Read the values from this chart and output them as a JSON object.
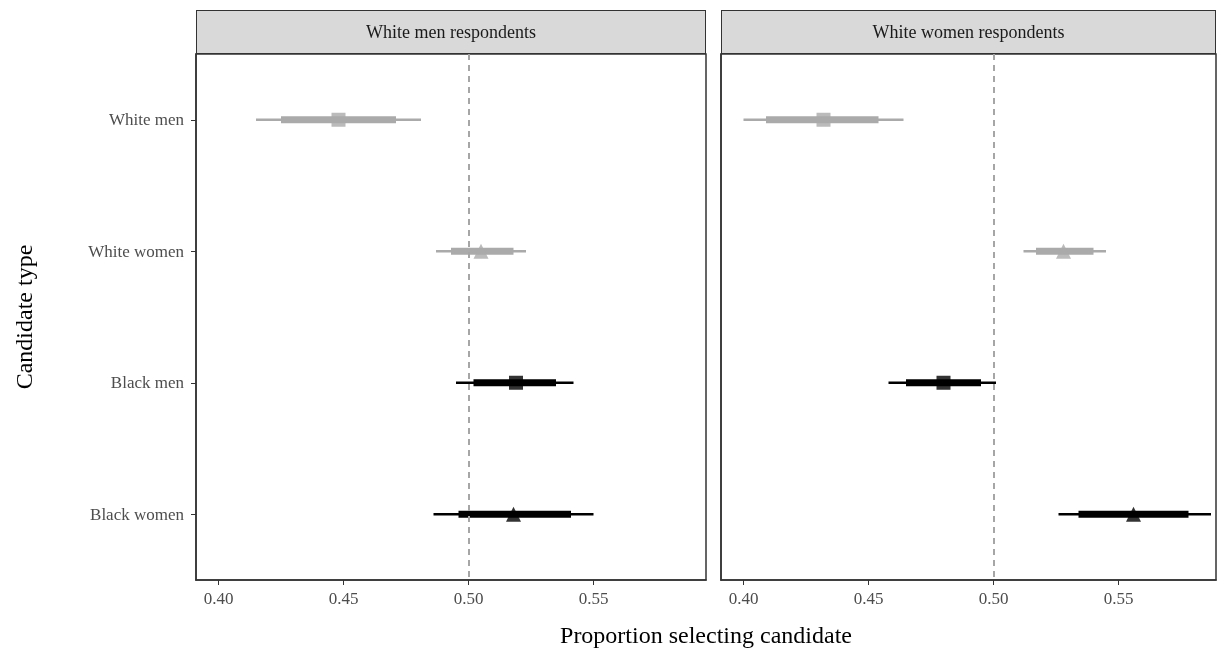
{
  "chart_data": [
    {
      "type": "scatter",
      "orientation": "horizontal",
      "title": "White men respondents",
      "xlabel": "Proportion selecting candidate",
      "ylabel": "Candidate type",
      "categories": [
        "White men",
        "White women",
        "Black men",
        "Black women"
      ],
      "xlim": [
        0.391,
        0.595
      ],
      "xticks": [
        {
          "value": 0.4,
          "label": "0.40"
        },
        {
          "value": 0.45,
          "label": "0.45"
        },
        {
          "value": 0.5,
          "label": "0.50"
        },
        {
          "value": 0.55,
          "label": "0.55"
        }
      ],
      "ref_lines": [
        {
          "axis": "x",
          "value": 0.5,
          "color": "#a6a6a6",
          "line_style": "dashed"
        }
      ],
      "series": [
        {
          "type": "bar",
          "base": [
            0.425,
            0.493,
            0.502,
            0.496
          ],
          "values": [
            0.046,
            0.025,
            0.033,
            0.045
          ],
          "colors": [
            "#aaaaaa",
            "#aaaaaa",
            "#000000",
            "#000000"
          ]
        },
        {
          "marker": "square",
          "values": [
            0.448,
            null,
            0.519,
            null
          ],
          "errors": [
            [
              0.415,
              0.481
            ],
            null,
            [
              0.495,
              0.542
            ],
            null
          ],
          "colors": [
            "#aaaaaa",
            null,
            "#000000",
            null
          ]
        },
        {
          "marker": "triangle",
          "values": [
            null,
            0.505,
            null,
            0.518
          ],
          "errors": [
            null,
            [
              0.487,
              0.523
            ],
            null,
            [
              0.486,
              0.55
            ]
          ],
          "colors": [
            null,
            "#aaaaaa",
            null,
            "#000000"
          ]
        }
      ]
    },
    {
      "type": "scatter",
      "orientation": "horizontal",
      "title": "White women respondents",
      "tick_labels": "x",
      "categories": [
        null,
        null,
        null,
        null
      ],
      "xlim": [
        0.391,
        0.589
      ],
      "xticks": [
        {
          "value": 0.4,
          "label": "0.40"
        },
        {
          "value": 0.45,
          "label": "0.45"
        },
        {
          "value": 0.5,
          "label": "0.50"
        },
        {
          "value": 0.55,
          "label": "0.55"
        }
      ],
      "ref_lines": [
        {
          "axis": "x",
          "value": 0.5,
          "color": "#a6a6a6",
          "line_style": "dashed"
        }
      ],
      "series": [
        {
          "type": "bar",
          "base": [
            0.409,
            0.517,
            0.465,
            0.534
          ],
          "values": [
            0.045,
            0.023,
            0.03,
            0.044
          ],
          "colors": [
            "#aaaaaa",
            "#aaaaaa",
            "#000000",
            "#000000"
          ]
        },
        {
          "marker": "square",
          "values": [
            0.432,
            null,
            0.48,
            null
          ],
          "errors": [
            [
              0.4,
              0.464
            ],
            null,
            [
              0.458,
              0.501
            ],
            null
          ],
          "colors": [
            "#aaaaaa",
            null,
            "#000000",
            null
          ]
        },
        {
          "marker": "triangle",
          "values": [
            null,
            0.528,
            null,
            0.556
          ],
          "errors": [
            null,
            [
              0.512,
              0.545
            ],
            null,
            [
              0.526,
              0.587
            ]
          ],
          "colors": [
            null,
            "#aaaaaa",
            null,
            "#000000"
          ]
        }
      ]
    }
  ]
}
